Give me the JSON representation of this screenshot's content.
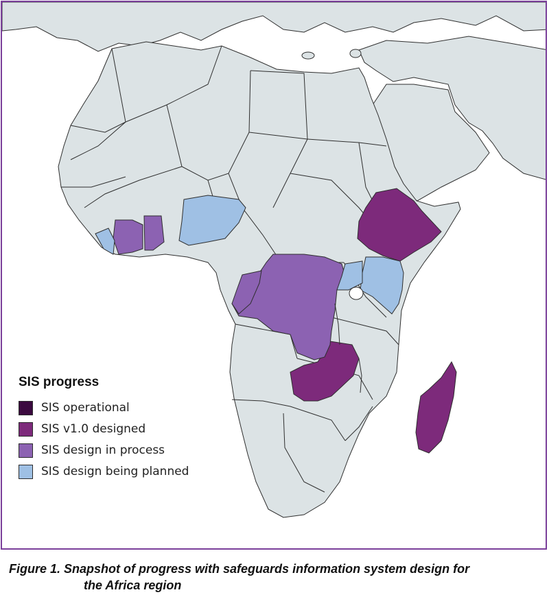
{
  "colors": {
    "ocean": "#ffffff",
    "land": "#dce3e5",
    "border": "#2e2e2e",
    "frame": "#7a3f9a",
    "operational": "#3b0a3f",
    "designed": "#7d2a7b",
    "in_process": "#8c62b2",
    "planned": "#9fc0e4"
  },
  "legend": {
    "title": "SIS progress",
    "items": [
      {
        "label": "SIS operational",
        "color": "#3b0a3f"
      },
      {
        "label": "SIS v1.0 designed",
        "color": "#7d2a7b"
      },
      {
        "label": "SIS design in process",
        "color": "#8c62b2"
      },
      {
        "label": "SIS design being planned",
        "color": "#9fc0e4"
      }
    ]
  },
  "caption": {
    "line1": "Figure 1.  Snapshot of progress with safeguards information system design for",
    "line2": "the Africa region"
  }
}
